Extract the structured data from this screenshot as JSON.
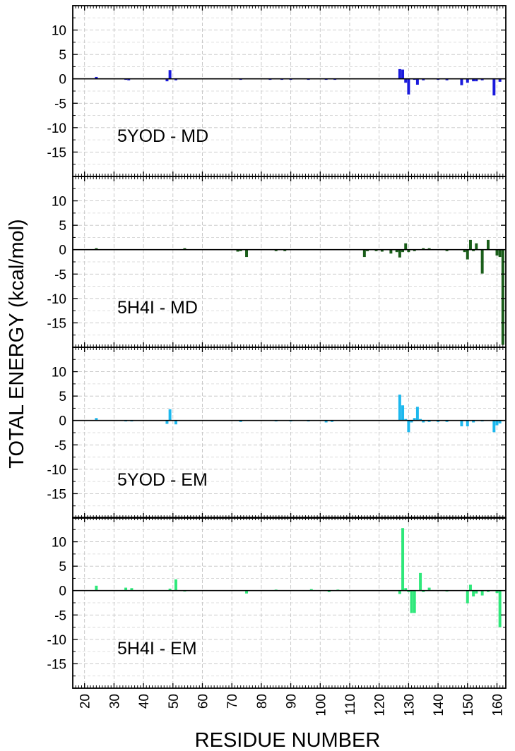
{
  "chart_data": {
    "type": "bar",
    "layout": "four vertically stacked panels sharing one x axis",
    "xlabel": "RESIDUE NUMBER",
    "ylabel": "TOTAL ENERGY (kcal/mol)",
    "xlim": [
      16,
      163
    ],
    "ylim": [
      -20,
      15
    ],
    "xticks": [
      20,
      30,
      40,
      50,
      60,
      70,
      80,
      90,
      100,
      110,
      120,
      130,
      140,
      150,
      160
    ],
    "yticks": [
      10,
      5,
      0,
      -5,
      -10,
      -15
    ],
    "grid": true,
    "panels": [
      {
        "label": "5YOD - MD",
        "color": "#1a1adc",
        "bars": [
          {
            "x": 24,
            "y": 0.4
          },
          {
            "x": 34,
            "y": -0.2
          },
          {
            "x": 35,
            "y": -0.3
          },
          {
            "x": 48,
            "y": -0.5
          },
          {
            "x": 49,
            "y": 1.8
          },
          {
            "x": 51,
            "y": -0.3
          },
          {
            "x": 73,
            "y": -0.2
          },
          {
            "x": 83,
            "y": -0.2
          },
          {
            "x": 87,
            "y": -0.2
          },
          {
            "x": 90,
            "y": -0.2
          },
          {
            "x": 96,
            "y": -0.2
          },
          {
            "x": 102,
            "y": -0.2
          },
          {
            "x": 105,
            "y": -0.2
          },
          {
            "x": 127,
            "y": 2.0
          },
          {
            "x": 128,
            "y": 1.9
          },
          {
            "x": 129,
            "y": -0.8
          },
          {
            "x": 130,
            "y": -3.2
          },
          {
            "x": 132,
            "y": -0.2
          },
          {
            "x": 133,
            "y": -1.2
          },
          {
            "x": 135,
            "y": -0.3
          },
          {
            "x": 140,
            "y": -0.2
          },
          {
            "x": 143,
            "y": -0.3
          },
          {
            "x": 148,
            "y": -1.3
          },
          {
            "x": 150,
            "y": -0.8
          },
          {
            "x": 152,
            "y": -0.5
          },
          {
            "x": 153,
            "y": -0.5
          },
          {
            "x": 155,
            "y": -0.3
          },
          {
            "x": 159,
            "y": -3.4
          },
          {
            "x": 161,
            "y": -0.6
          }
        ]
      },
      {
        "label": "5H4I - MD",
        "color": "#1a5e1a",
        "bars": [
          {
            "x": 24,
            "y": 0.3
          },
          {
            "x": 54,
            "y": 0.3
          },
          {
            "x": 72,
            "y": -0.4
          },
          {
            "x": 73,
            "y": -0.3
          },
          {
            "x": 75,
            "y": -1.5
          },
          {
            "x": 85,
            "y": -0.3
          },
          {
            "x": 88,
            "y": -0.3
          },
          {
            "x": 115,
            "y": -1.5
          },
          {
            "x": 116,
            "y": -0.3
          },
          {
            "x": 119,
            "y": -0.3
          },
          {
            "x": 121,
            "y": -0.4
          },
          {
            "x": 124,
            "y": -0.8
          },
          {
            "x": 126,
            "y": -0.5
          },
          {
            "x": 127,
            "y": -1.6
          },
          {
            "x": 128,
            "y": -0.5
          },
          {
            "x": 129,
            "y": 1.3
          },
          {
            "x": 130,
            "y": -0.5
          },
          {
            "x": 132,
            "y": -0.3
          },
          {
            "x": 135,
            "y": 0.3
          },
          {
            "x": 137,
            "y": 0.3
          },
          {
            "x": 143,
            "y": -0.3
          },
          {
            "x": 149,
            "y": -0.5
          },
          {
            "x": 150,
            "y": -2.0
          },
          {
            "x": 151,
            "y": 2.0
          },
          {
            "x": 152,
            "y": -0.3
          },
          {
            "x": 153,
            "y": 1.3
          },
          {
            "x": 155,
            "y": -4.9
          },
          {
            "x": 157,
            "y": 2.0
          },
          {
            "x": 160,
            "y": -1.2
          },
          {
            "x": 161,
            "y": -1.5
          },
          {
            "x": 162,
            "y": -19.5
          }
        ]
      },
      {
        "label": "5YOD - EM",
        "color": "#1cb8ee",
        "bars": [
          {
            "x": 24,
            "y": 0.5
          },
          {
            "x": 34,
            "y": -0.2
          },
          {
            "x": 36,
            "y": -0.2
          },
          {
            "x": 48,
            "y": -0.7
          },
          {
            "x": 49,
            "y": 2.3
          },
          {
            "x": 51,
            "y": -0.8
          },
          {
            "x": 73,
            "y": -0.3
          },
          {
            "x": 85,
            "y": -0.2
          },
          {
            "x": 90,
            "y": -0.2
          },
          {
            "x": 96,
            "y": -0.2
          },
          {
            "x": 102,
            "y": -0.4
          },
          {
            "x": 104,
            "y": -0.3
          },
          {
            "x": 127,
            "y": 5.3
          },
          {
            "x": 128,
            "y": 3.1
          },
          {
            "x": 129,
            "y": 0.3
          },
          {
            "x": 130,
            "y": -2.4
          },
          {
            "x": 131,
            "y": -0.4
          },
          {
            "x": 132,
            "y": 0.5
          },
          {
            "x": 133,
            "y": 2.8
          },
          {
            "x": 134,
            "y": 0.3
          },
          {
            "x": 135,
            "y": -0.4
          },
          {
            "x": 137,
            "y": -0.3
          },
          {
            "x": 140,
            "y": -0.3
          },
          {
            "x": 143,
            "y": -0.3
          },
          {
            "x": 148,
            "y": -1.2
          },
          {
            "x": 150,
            "y": -1.2
          },
          {
            "x": 152,
            "y": -0.4
          },
          {
            "x": 155,
            "y": -0.2
          },
          {
            "x": 159,
            "y": -2.4
          },
          {
            "x": 160,
            "y": -1.0
          },
          {
            "x": 161,
            "y": -0.6
          }
        ]
      },
      {
        "label": "5H4I - EM",
        "color": "#2ee87a",
        "bars": [
          {
            "x": 24,
            "y": 1.0
          },
          {
            "x": 34,
            "y": 0.6
          },
          {
            "x": 36,
            "y": 0.5
          },
          {
            "x": 49,
            "y": 0.4
          },
          {
            "x": 51,
            "y": 2.3
          },
          {
            "x": 54,
            "y": -0.2
          },
          {
            "x": 75,
            "y": -0.6
          },
          {
            "x": 85,
            "y": 0.2
          },
          {
            "x": 97,
            "y": 0.3
          },
          {
            "x": 103,
            "y": -0.3
          },
          {
            "x": 106,
            "y": 0.2
          },
          {
            "x": 127,
            "y": -0.7
          },
          {
            "x": 128,
            "y": 12.8
          },
          {
            "x": 129,
            "y": 0.5
          },
          {
            "x": 130,
            "y": -0.3
          },
          {
            "x": 131,
            "y": -4.6
          },
          {
            "x": 132,
            "y": -4.6
          },
          {
            "x": 134,
            "y": 3.6
          },
          {
            "x": 135,
            "y": -0.3
          },
          {
            "x": 137,
            "y": 0.6
          },
          {
            "x": 143,
            "y": -0.2
          },
          {
            "x": 150,
            "y": -2.6
          },
          {
            "x": 151,
            "y": 1.2
          },
          {
            "x": 152,
            "y": -1.2
          },
          {
            "x": 153,
            "y": -0.6
          },
          {
            "x": 155,
            "y": -1.0
          },
          {
            "x": 157,
            "y": -0.3
          },
          {
            "x": 160,
            "y": -0.5
          },
          {
            "x": 161,
            "y": -7.5
          }
        ]
      }
    ]
  }
}
